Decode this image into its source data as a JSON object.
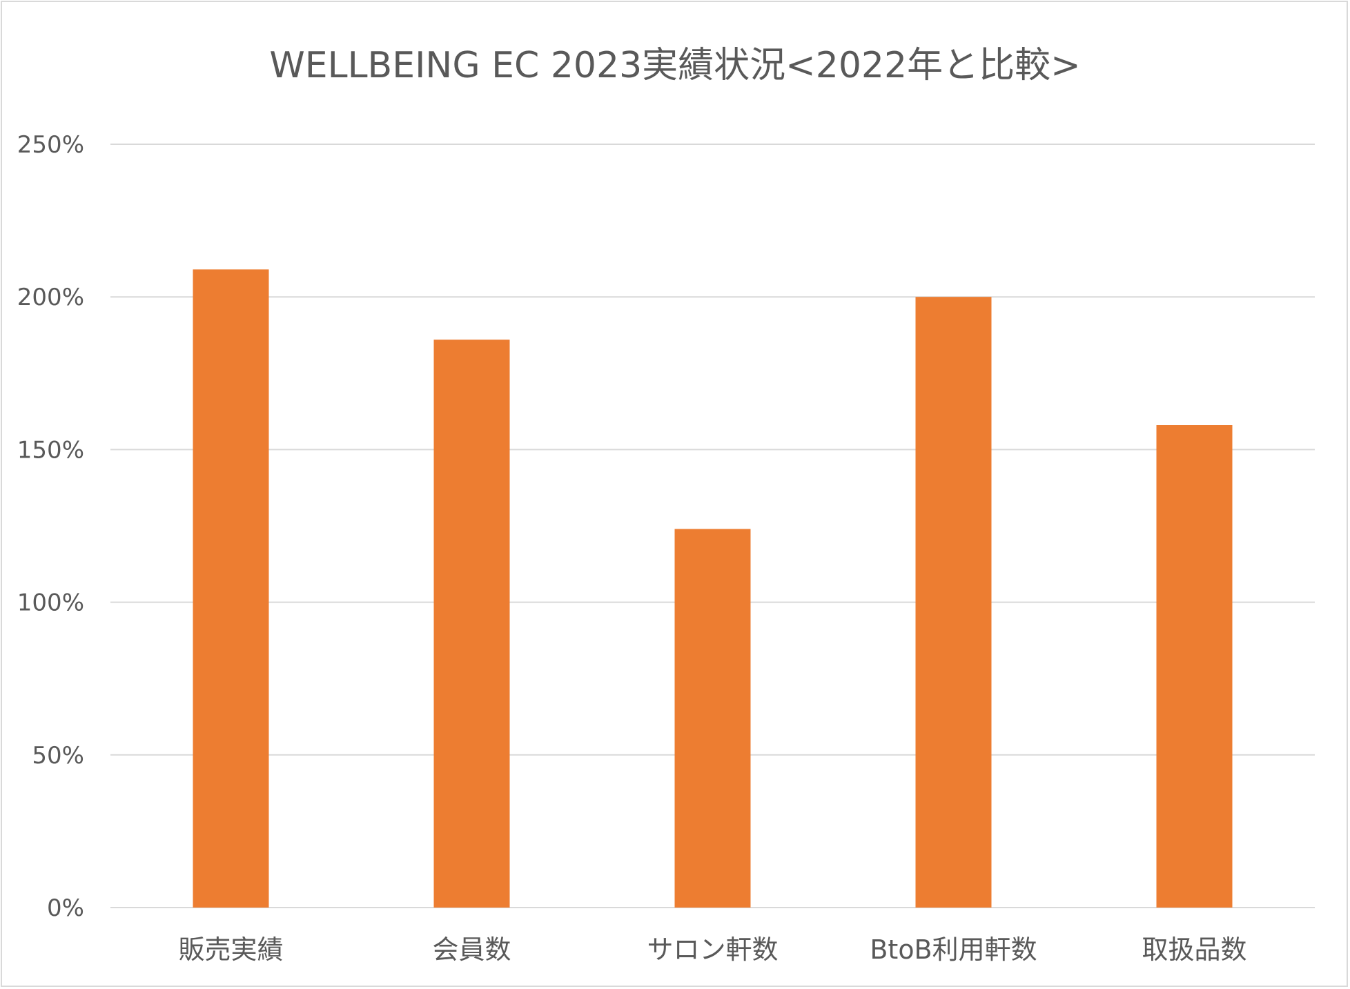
{
  "chart_data": {
    "type": "bar",
    "title": "WELLBEING EC 2023実績状況<2022年と比較>",
    "categories": [
      "販売実績",
      "会員数",
      "サロン軒数",
      "BtoB利用軒数",
      "取扱品数"
    ],
    "series": [
      {
        "values": [
          209,
          186,
          124,
          200,
          158
        ]
      }
    ],
    "y_unit": "%",
    "ylim": [
      0,
      250
    ],
    "y_ticks": [
      0,
      50,
      100,
      150,
      200,
      250
    ],
    "y_tick_labels": [
      "0%",
      "50%",
      "100%",
      "150%",
      "200%",
      "250%"
    ],
    "xlabel": "",
    "ylabel": "",
    "grid": true,
    "legend": "none",
    "colors": {
      "bar": "#ED7D31",
      "grid": "#D9D9D9",
      "text": "#595959",
      "border": "#D9D9D9"
    }
  }
}
